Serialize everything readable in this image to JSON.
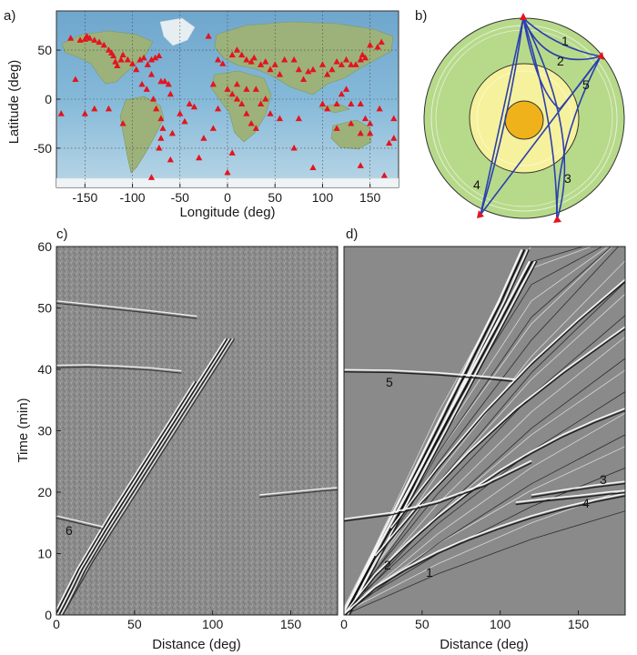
{
  "panel_labels": {
    "a": "a)",
    "b": "b)",
    "c": "c)",
    "d": "d)"
  },
  "colors": {
    "station": "#e3141f",
    "ocean": "#7fb1d4",
    "land": "#9ab07a",
    "mantle": "#b9dc8a",
    "outer_core": "#f6f09a",
    "inner_core": "#f0b21a",
    "ray": "#2b3fae",
    "panel_bg": "#8a8a8a"
  },
  "panel_b": {
    "ray_labels": [
      "1",
      "2",
      "5",
      "4",
      "3"
    ]
  },
  "panel_d": {
    "phase_labels": [
      "5",
      "3",
      "4",
      "2",
      "1"
    ]
  },
  "panel_c": {
    "phase_labels": [
      "6"
    ]
  },
  "chart_data": [
    {
      "type": "scatter",
      "panel": "a",
      "title": "",
      "xlabel": "Longitude (deg)",
      "ylabel": "Latitude (deg)",
      "xlim": [
        -180,
        180
      ],
      "ylim": [
        -90,
        90
      ],
      "xticks": [
        "-150",
        "-100",
        "-50",
        "0",
        "50",
        "100",
        "150"
      ],
      "yticks": [
        "50",
        "0",
        "-50"
      ],
      "grid": true,
      "series": [
        {
          "marker": "triangle",
          "points": [
            [
              -165,
              62
            ],
            [
              -155,
              60
            ],
            [
              -150,
              61
            ],
            [
              -148,
              64
            ],
            [
              -145,
              62
            ],
            [
              -140,
              60
            ],
            [
              -135,
              58
            ],
            [
              -130,
              55
            ],
            [
              -125,
              50
            ],
            [
              -122,
              47
            ],
            [
              -120,
              44
            ],
            [
              -118,
              38
            ],
            [
              -116,
              34
            ],
            [
              -112,
              40
            ],
            [
              -110,
              45
            ],
            [
              -105,
              40
            ],
            [
              -100,
              36
            ],
            [
              -96,
              30
            ],
            [
              -92,
              40
            ],
            [
              -88,
              42
            ],
            [
              -84,
              35
            ],
            [
              -80,
              40
            ],
            [
              -76,
              42
            ],
            [
              -72,
              44
            ],
            [
              -70,
              18
            ],
            [
              -66,
              18
            ],
            [
              -62,
              15
            ],
            [
              -80,
              25
            ],
            [
              -90,
              15
            ],
            [
              -85,
              10
            ],
            [
              -78,
              0
            ],
            [
              -75,
              -10
            ],
            [
              -70,
              -20
            ],
            [
              -68,
              -30
            ],
            [
              -70,
              -40
            ],
            [
              -72,
              -50
            ],
            [
              -58,
              -35
            ],
            [
              -50,
              -15
            ],
            [
              -45,
              -23
            ],
            [
              -40,
              -5
            ],
            [
              -35,
              -8
            ],
            [
              -60,
              5
            ],
            [
              -20,
              64
            ],
            [
              -10,
              40
            ],
            [
              -5,
              36
            ],
            [
              5,
              45
            ],
            [
              10,
              50
            ],
            [
              15,
              45
            ],
            [
              20,
              40
            ],
            [
              25,
              38
            ],
            [
              28,
              42
            ],
            [
              35,
              35
            ],
            [
              40,
              38
            ],
            [
              45,
              30
            ],
            [
              50,
              35
            ],
            [
              55,
              25
            ],
            [
              60,
              40
            ],
            [
              70,
              40
            ],
            [
              75,
              30
            ],
            [
              80,
              20
            ],
            [
              85,
              28
            ],
            [
              90,
              30
            ],
            [
              100,
              35
            ],
            [
              105,
              25
            ],
            [
              110,
              30
            ],
            [
              115,
              38
            ],
            [
              120,
              35
            ],
            [
              125,
              40
            ],
            [
              130,
              35
            ],
            [
              135,
              35
            ],
            [
              140,
              40
            ],
            [
              142,
              45
            ],
            [
              145,
              42
            ],
            [
              150,
              55
            ],
            [
              158,
              53
            ],
            [
              162,
              58
            ],
            [
              0,
              10
            ],
            [
              5,
              5
            ],
            [
              10,
              0
            ],
            [
              15,
              -5
            ],
            [
              20,
              -15
            ],
            [
              25,
              -25
            ],
            [
              30,
              -30
            ],
            [
              35,
              -5
            ],
            [
              40,
              0
            ],
            [
              30,
              10
            ],
            [
              20,
              10
            ],
            [
              10,
              15
            ],
            [
              -15,
              15
            ],
            [
              -10,
              -10
            ],
            [
              45,
              -15
            ],
            [
              55,
              -20
            ],
            [
              70,
              -50
            ],
            [
              75,
              -20
            ],
            [
              100,
              -5
            ],
            [
              105,
              -10
            ],
            [
              115,
              -5
            ],
            [
              120,
              5
            ],
            [
              125,
              10
            ],
            [
              130,
              -5
            ],
            [
              140,
              -5
            ],
            [
              145,
              -20
            ],
            [
              150,
              -25
            ],
            [
              115,
              -30
            ],
            [
              130,
              -25
            ],
            [
              140,
              -35
            ],
            [
              150,
              -35
            ],
            [
              170,
              -45
            ],
            [
              175,
              -40
            ],
            [
              175,
              -20
            ],
            [
              160,
              -10
            ],
            [
              -175,
              -15
            ],
            [
              -160,
              20
            ],
            [
              -150,
              -15
            ],
            [
              -140,
              -10
            ],
            [
              -110,
              -25
            ],
            [
              -125,
              -10
            ],
            [
              -25,
              -40
            ],
            [
              -15,
              -30
            ],
            [
              5,
              -55
            ],
            [
              -60,
              -62
            ],
            [
              -30,
              -60
            ],
            [
              90,
              -70
            ],
            [
              140,
              -68
            ],
            [
              165,
              -78
            ],
            [
              -80,
              -80
            ],
            [
              0,
              -75
            ]
          ]
        }
      ]
    },
    {
      "type": "heatmap",
      "panel": "c",
      "title": "",
      "xlabel": "Distance (deg)",
      "ylabel": "Time (min)",
      "xlim": [
        0,
        180
      ],
      "ylim": [
        0,
        60
      ],
      "xticks": [
        "0",
        "50",
        "100",
        "150"
      ],
      "yticks": [
        "0",
        "10",
        "20",
        "30",
        "40",
        "50",
        "60"
      ],
      "grid": false,
      "colormap": "gray",
      "series": [
        {
          "name": "6",
          "branch": "surface-wave",
          "x": [
            0,
            20,
            40,
            60,
            80,
            100,
            110
          ],
          "y": [
            0,
            9,
            17,
            25,
            33,
            41,
            45
          ]
        },
        {
          "branch": "overtone",
          "x": [
            0,
            15,
            35,
            55,
            75,
            90
          ],
          "y": [
            0,
            7.5,
            16,
            24,
            32,
            38
          ]
        },
        {
          "branch": "horizontal-40",
          "x": [
            0,
            20,
            40,
            60,
            80
          ],
          "y": [
            40.5,
            40.6,
            40.4,
            40.1,
            39.6
          ]
        },
        {
          "branch": "horizontal-20",
          "x": [
            130,
            150,
            170,
            180
          ],
          "y": [
            19.4,
            19.9,
            20.4,
            20.6
          ]
        },
        {
          "branch": "horizontal-50",
          "x": [
            0,
            30,
            60,
            90
          ],
          "y": [
            51,
            50.2,
            49.4,
            48.5
          ]
        },
        {
          "branch": "horizontal-16",
          "x": [
            0,
            10,
            20,
            30
          ],
          "y": [
            16,
            15.4,
            14.8,
            14.2
          ]
        }
      ]
    },
    {
      "type": "heatmap",
      "panel": "d",
      "title": "",
      "xlabel": "Distance (deg)",
      "ylabel": "",
      "xlim": [
        0,
        180
      ],
      "ylim": [
        0,
        60
      ],
      "xticks": [
        "0",
        "50",
        "100",
        "150"
      ],
      "yticks": [],
      "grid": false,
      "colormap": "gray",
      "series": [
        {
          "branch": "rayleigh",
          "x": [
            0,
            20,
            40,
            60,
            80,
            100,
            115
          ],
          "y": [
            0,
            10.2,
            20.4,
            30.6,
            40.8,
            51,
            59.5
          ]
        },
        {
          "branch": "love",
          "x": [
            0,
            20,
            40,
            60,
            80,
            100,
            120
          ],
          "y": [
            0,
            9.6,
            19.2,
            28.8,
            38.4,
            48,
            57.6
          ]
        },
        {
          "name": "2",
          "branch": "S",
          "x": [
            0,
            20,
            40,
            60,
            80,
            100,
            120,
            140,
            160,
            180
          ],
          "y": [
            0,
            6.5,
            11.5,
            16,
            20,
            23.5,
            26.5,
            29.2,
            31.5,
            33.5
          ]
        },
        {
          "name": "1",
          "branch": "P",
          "x": [
            0,
            20,
            40,
            60,
            80,
            100,
            120,
            140,
            160,
            180
          ],
          "y": [
            0,
            4.5,
            7.6,
            10.2,
            12.4,
            14.3,
            16,
            17.4,
            18.6,
            19.6
          ]
        },
        {
          "name": "3",
          "branch": "PKP",
          "x": [
            120,
            140,
            160,
            180
          ],
          "y": [
            19.4,
            20.2,
            21,
            21.6
          ]
        },
        {
          "name": "4",
          "branch": "PKiKP",
          "x": [
            110,
            130,
            150,
            170,
            180
          ],
          "y": [
            18.2,
            18.8,
            19.3,
            19.9,
            20.1
          ]
        },
        {
          "name": "5",
          "branch": "ScS2",
          "x": [
            0,
            30,
            60,
            90,
            110
          ],
          "y": [
            39.8,
            39.7,
            39.3,
            38.7,
            38.2
          ]
        },
        {
          "branch": "SS",
          "x": [
            20,
            50,
            80,
            110,
            140,
            170,
            180
          ],
          "y": [
            9.5,
            18.5,
            26.5,
            33.5,
            39.5,
            45,
            46.8
          ]
        },
        {
          "branch": "SSS",
          "x": [
            30,
            60,
            90,
            120,
            150,
            180
          ],
          "y": [
            14,
            24,
            33,
            41,
            48,
            54.5
          ]
        },
        {
          "branch": "ScS",
          "x": [
            0,
            30,
            60,
            90,
            120
          ],
          "y": [
            15.5,
            16.5,
            18.4,
            21.2,
            25
          ]
        }
      ]
    }
  ]
}
